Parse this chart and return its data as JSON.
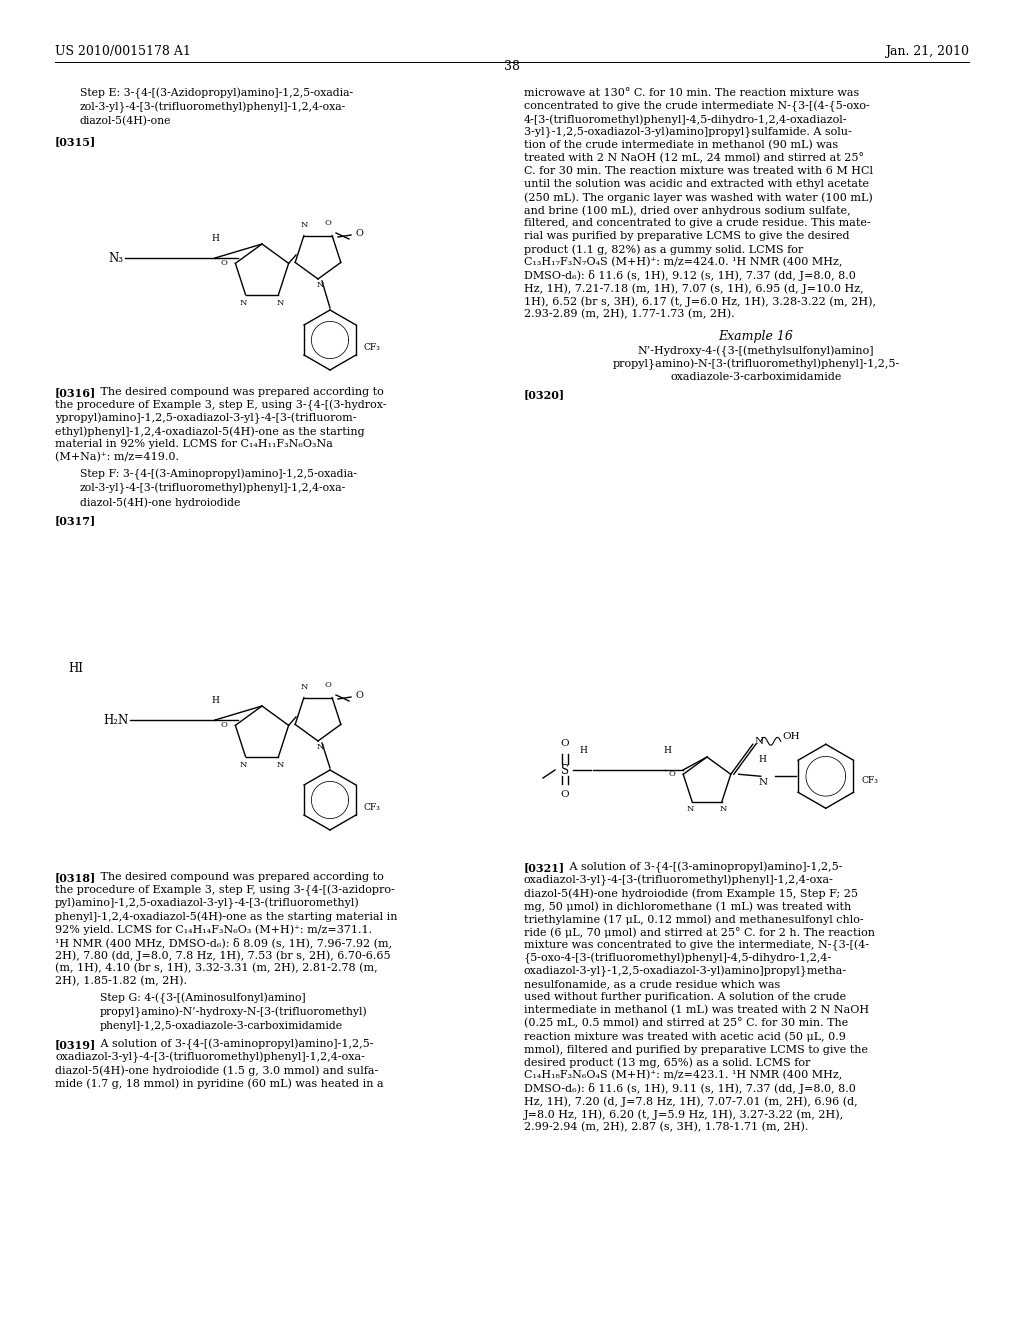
{
  "page_header_left": "US 2010/0015178 A1",
  "page_header_right": "Jan. 21, 2010",
  "page_number": "38",
  "background_color": "#ffffff"
}
